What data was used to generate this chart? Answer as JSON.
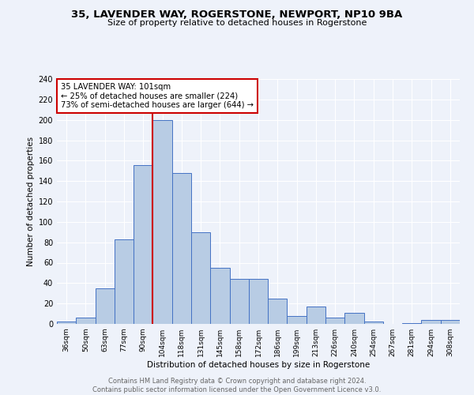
{
  "title": "35, LAVENDER WAY, ROGERSTONE, NEWPORT, NP10 9BA",
  "subtitle": "Size of property relative to detached houses in Rogerstone",
  "xlabel": "Distribution of detached houses by size in Rogerstone",
  "ylabel": "Number of detached properties",
  "categories": [
    "36sqm",
    "50sqm",
    "63sqm",
    "77sqm",
    "90sqm",
    "104sqm",
    "118sqm",
    "131sqm",
    "145sqm",
    "158sqm",
    "172sqm",
    "186sqm",
    "199sqm",
    "213sqm",
    "226sqm",
    "240sqm",
    "254sqm",
    "267sqm",
    "281sqm",
    "294sqm",
    "308sqm"
  ],
  "values": [
    2,
    6,
    35,
    83,
    156,
    200,
    148,
    90,
    55,
    44,
    44,
    25,
    8,
    17,
    6,
    11,
    2,
    0,
    1,
    4,
    4
  ],
  "bar_color": "#b8cce4",
  "bar_edgecolor": "#4472c4",
  "vline_x_index": 5,
  "vline_label": "35 LAVENDER WAY: 101sqm",
  "annotation_line1": "← 25% of detached houses are smaller (224)",
  "annotation_line2": "73% of semi-detached houses are larger (644) →",
  "annotation_box_color": "#cc0000",
  "background_color": "#eef2fa",
  "grid_color": "#ffffff",
  "footnote1": "Contains HM Land Registry data © Crown copyright and database right 2024.",
  "footnote2": "Contains public sector information licensed under the Open Government Licence v3.0.",
  "ylim": [
    0,
    240
  ],
  "yticks": [
    0,
    20,
    40,
    60,
    80,
    100,
    120,
    140,
    160,
    180,
    200,
    220,
    240
  ]
}
